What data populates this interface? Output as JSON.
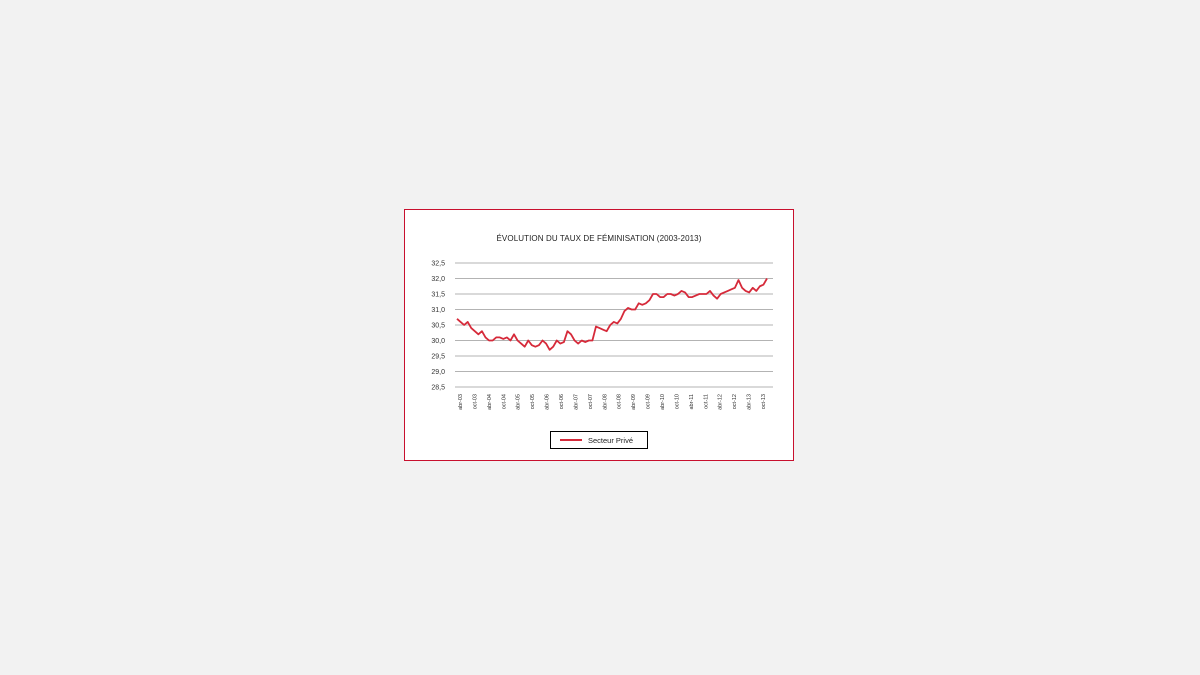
{
  "chart_data": {
    "type": "line",
    "title": "ÉVOLUTION DU TAUX DE FÉMINISATION (2003-2013)",
    "xlabel": "",
    "ylabel": "",
    "ylim": [
      28.5,
      32.5
    ],
    "yticks": [
      "32,5",
      "32,0",
      "31,5",
      "31,0",
      "30,5",
      "30,0",
      "29,5",
      "29,0",
      "28,5"
    ],
    "grid": true,
    "legend_position": "bottom",
    "xtick_labels": [
      "abr-03",
      "oct-03",
      "abr-04",
      "oct-04",
      "abr-05",
      "oct-05",
      "abr-06",
      "oct-06",
      "abr-07",
      "oct-07",
      "abr-08",
      "oct-08",
      "abr-09",
      "oct-09",
      "abr-10",
      "oct-10",
      "abr-11",
      "oct-11",
      "abr-12",
      "oct-12",
      "abr-13",
      "oct-13"
    ],
    "series": [
      {
        "name": "Secteur Privé",
        "color": "#d62a3a",
        "values": [
          30.7,
          30.6,
          30.5,
          30.6,
          30.4,
          30.3,
          30.2,
          30.3,
          30.1,
          30.0,
          30.0,
          30.1,
          30.1,
          30.05,
          30.1,
          30.0,
          30.2,
          30.0,
          29.9,
          29.8,
          30.0,
          29.85,
          29.8,
          29.85,
          30.0,
          29.9,
          29.7,
          29.8,
          30.0,
          29.9,
          29.95,
          30.3,
          30.2,
          30.0,
          29.9,
          30.0,
          29.95,
          30.0,
          30.0,
          30.45,
          30.4,
          30.35,
          30.3,
          30.5,
          30.6,
          30.55,
          30.7,
          30.95,
          31.05,
          31.0,
          31.0,
          31.2,
          31.15,
          31.2,
          31.3,
          31.5,
          31.5,
          31.4,
          31.4,
          31.5,
          31.5,
          31.45,
          31.5,
          31.6,
          31.55,
          31.4,
          31.4,
          31.45,
          31.5,
          31.5,
          31.5,
          31.6,
          31.45,
          31.35,
          31.5,
          31.55,
          31.6,
          31.65,
          31.7,
          31.95,
          31.7,
          31.6,
          31.55,
          31.7,
          31.6,
          31.75,
          31.8,
          32.0
        ]
      }
    ]
  }
}
